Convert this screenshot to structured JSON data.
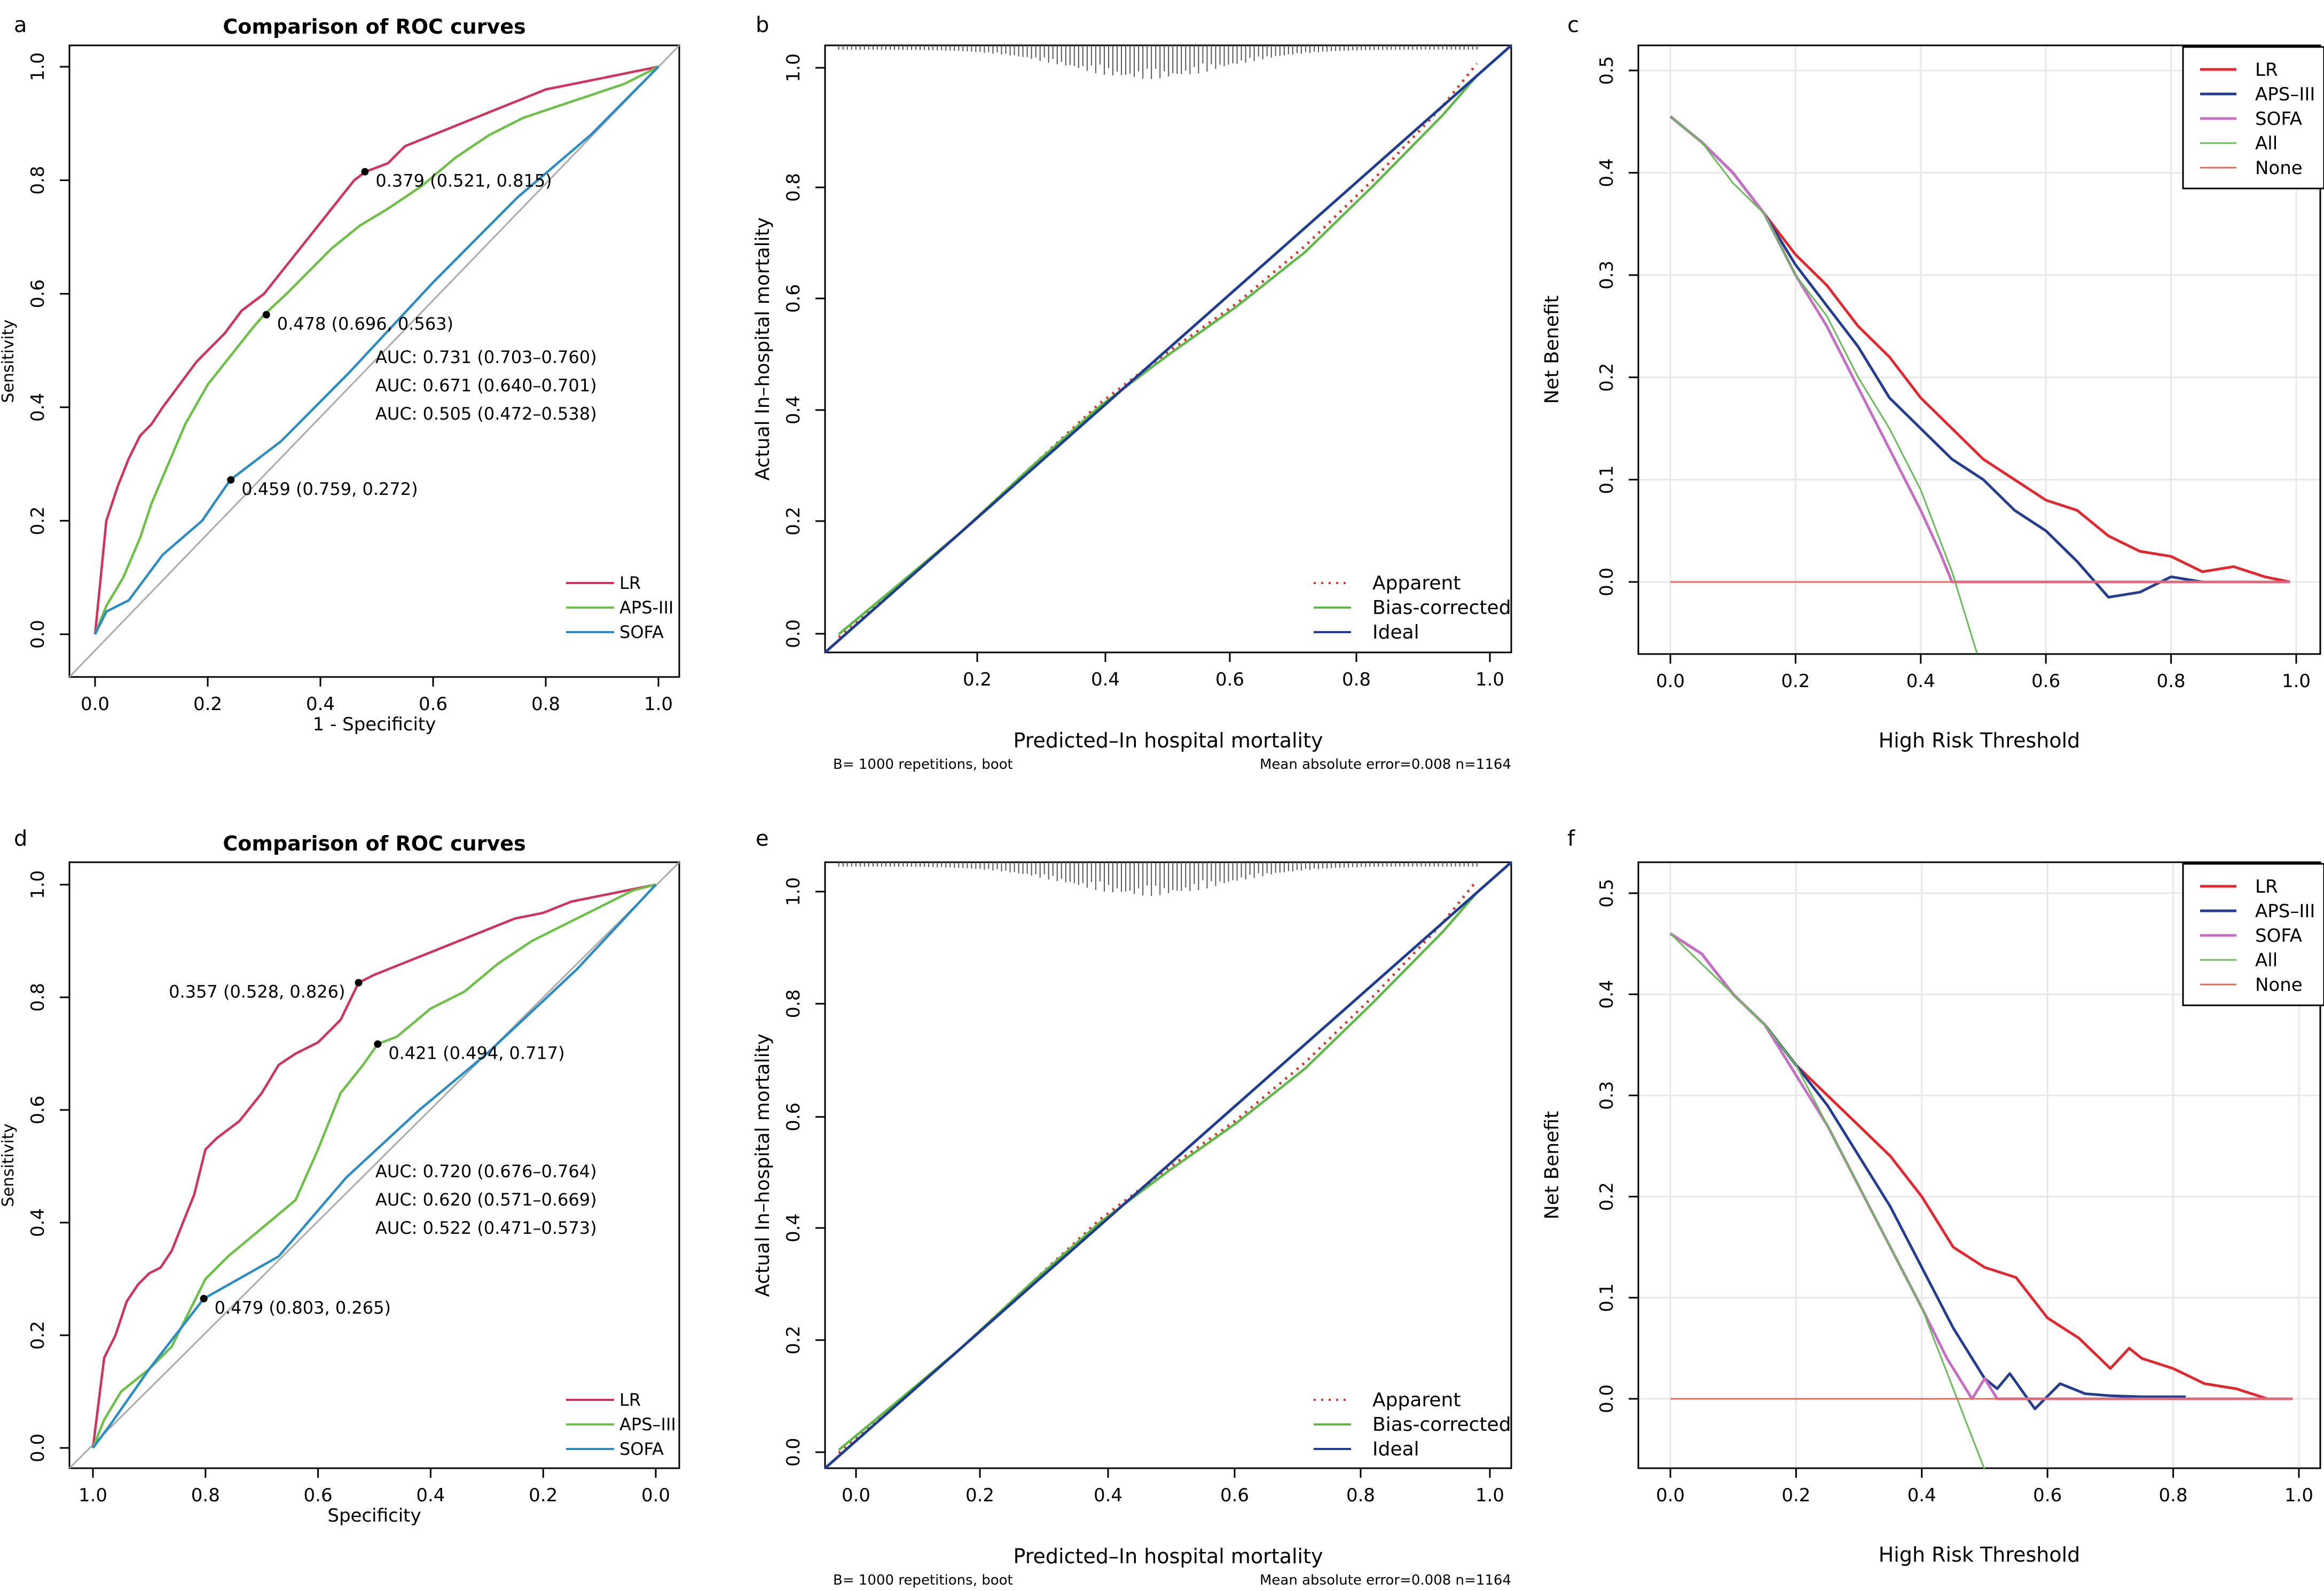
{
  "colors": {
    "lr_roc": "#d0325c",
    "aps_roc": "#6cbf47",
    "sofa_roc": "#2b8cc4",
    "ideal": "#1f3c94",
    "bias": "#5cb946",
    "apparent": "#d23b2e",
    "lr_dca": "#e0282f",
    "aps_dca": "#253d8f",
    "sofa_dca": "#c46fc4",
    "all_dca": "#68bb58",
    "none_dca": "#e26b5a"
  },
  "chart_data": [
    {
      "panel": "a",
      "type": "line",
      "title": "Comparison of ROC curves",
      "xlabel": "1 - Specificity",
      "ylabel": "Sensitivity",
      "xlim": [
        0,
        1
      ],
      "ylim": [
        0,
        1
      ],
      "x_ticks": [
        "0.0",
        "0.2",
        "0.4",
        "0.6",
        "0.8",
        "1.0"
      ],
      "y_ticks": [
        "0.0",
        "0.2",
        "0.4",
        "0.6",
        "0.8",
        "1.0"
      ],
      "series": [
        {
          "name": "LR",
          "color_key": "lr_roc",
          "x": [
            0,
            0.01,
            0.02,
            0.04,
            0.06,
            0.08,
            0.1,
            0.12,
            0.15,
            0.18,
            0.2,
            0.23,
            0.26,
            0.3,
            0.34,
            0.38,
            0.42,
            0.46,
            0.48,
            0.52,
            0.55,
            0.6,
            0.65,
            0.7,
            0.75,
            0.8,
            0.85,
            0.9,
            0.95,
            1
          ],
          "y": [
            0,
            0.1,
            0.2,
            0.26,
            0.31,
            0.35,
            0.37,
            0.4,
            0.44,
            0.48,
            0.5,
            0.53,
            0.57,
            0.6,
            0.65,
            0.7,
            0.75,
            0.8,
            0.815,
            0.83,
            0.86,
            0.88,
            0.9,
            0.92,
            0.94,
            0.96,
            0.97,
            0.98,
            0.99,
            1
          ]
        },
        {
          "name": "APS-III",
          "color_key": "aps_roc",
          "x": [
            0,
            0.02,
            0.05,
            0.08,
            0.1,
            0.13,
            0.16,
            0.2,
            0.24,
            0.28,
            0.3,
            0.34,
            0.38,
            0.42,
            0.47,
            0.52,
            0.58,
            0.64,
            0.7,
            0.76,
            0.82,
            0.88,
            0.94,
            1
          ],
          "y": [
            0,
            0.05,
            0.1,
            0.17,
            0.23,
            0.3,
            0.37,
            0.44,
            0.49,
            0.54,
            0.563,
            0.6,
            0.64,
            0.68,
            0.72,
            0.75,
            0.79,
            0.84,
            0.88,
            0.91,
            0.93,
            0.95,
            0.97,
            1
          ]
        },
        {
          "name": "SOFA",
          "color_key": "sofa_roc",
          "x": [
            0,
            0.02,
            0.06,
            0.12,
            0.19,
            0.24,
            0.33,
            0.45,
            0.6,
            0.75,
            0.88,
            1
          ],
          "y": [
            0,
            0.04,
            0.06,
            0.14,
            0.2,
            0.272,
            0.34,
            0.46,
            0.62,
            0.77,
            0.88,
            1
          ]
        }
      ],
      "points": [
        {
          "x": 0.479,
          "y": 0.815,
          "label": "0.379 (0.521, 0.815)"
        },
        {
          "x": 0.304,
          "y": 0.563,
          "label": "0.478 (0.696, 0.563)"
        },
        {
          "x": 0.241,
          "y": 0.272,
          "label": "0.459 (0.759, 0.272)"
        }
      ],
      "auc_labels": [
        {
          "text": "AUC: 0.731 (0.703–0.760)",
          "color_key": "lr_roc"
        },
        {
          "text": "AUC: 0.671 (0.640–0.701)",
          "color_key": "aps_roc"
        },
        {
          "text": "AUC: 0.505 (0.472–0.538)",
          "color_key": "sofa_roc"
        }
      ],
      "legend": [
        "LR",
        "APS-III",
        "SOFA"
      ],
      "legend_position": "bottom-right"
    },
    {
      "panel": "b",
      "type": "line",
      "title": "",
      "xlabel": "Predicted–In hospital mortality",
      "ylabel": "Actual In–hospital mortality",
      "xlim": [
        0,
        1
      ],
      "ylim": [
        0,
        1
      ],
      "x_ticks": [
        "0.2",
        "0.4",
        "0.6",
        "0.8",
        "1.0"
      ],
      "y_ticks": [
        "0.0",
        "0.2",
        "0.4",
        "0.6",
        "0.8",
        "1.0"
      ],
      "series": [
        {
          "name": "Apparent",
          "color_key": "apparent",
          "x": [
            0.02,
            0.1,
            0.2,
            0.3,
            0.4,
            0.5,
            0.6,
            0.7,
            0.8,
            0.9,
            0.95
          ],
          "y": [
            0.025,
            0.1,
            0.2,
            0.305,
            0.41,
            0.495,
            0.575,
            0.67,
            0.78,
            0.9,
            0.97
          ]
        },
        {
          "name": "Bias-corrected",
          "color_key": "bias",
          "x": [
            0.02,
            0.1,
            0.2,
            0.3,
            0.4,
            0.5,
            0.6,
            0.7,
            0.8,
            0.9,
            0.95
          ],
          "y": [
            0.03,
            0.105,
            0.2,
            0.305,
            0.405,
            0.49,
            0.57,
            0.66,
            0.77,
            0.885,
            0.95
          ]
        },
        {
          "name": "Ideal",
          "color_key": "ideal",
          "x": [
            0,
            1
          ],
          "y": [
            0,
            1
          ]
        }
      ],
      "rug_position": "top",
      "legend": [
        "Apparent",
        "Bias-corrected",
        "Ideal"
      ],
      "legend_position": "bottom-right",
      "footer_left": "B= 1000 repetitions, boot",
      "footer_right": "Mean absolute error=0.008 n=1164"
    },
    {
      "panel": "c",
      "type": "line",
      "title": "",
      "xlabel": "High Risk Threshold",
      "ylabel": "Net Benefit",
      "xlim": [
        0,
        1
      ],
      "ylim": [
        -0.07,
        0.5
      ],
      "x_ticks": [
        "0.0",
        "0.2",
        "0.4",
        "0.6",
        "0.8",
        "1.0"
      ],
      "y_ticks": [
        "0.0",
        "0.1",
        "0.2",
        "0.3",
        "0.4",
        "0.5"
      ],
      "series": [
        {
          "name": "LR",
          "color_key": "lr_dca",
          "x": [
            0,
            0.05,
            0.1,
            0.15,
            0.2,
            0.25,
            0.3,
            0.35,
            0.4,
            0.45,
            0.5,
            0.55,
            0.6,
            0.65,
            0.7,
            0.75,
            0.8,
            0.85,
            0.9,
            0.95,
            0.99
          ],
          "y": [
            0.455,
            0.43,
            0.4,
            0.36,
            0.32,
            0.29,
            0.25,
            0.22,
            0.18,
            0.15,
            0.12,
            0.1,
            0.08,
            0.07,
            0.045,
            0.03,
            0.025,
            0.01,
            0.015,
            0.005,
            0
          ]
        },
        {
          "name": "APS-III",
          "color_key": "aps_dca",
          "x": [
            0,
            0.05,
            0.1,
            0.15,
            0.2,
            0.25,
            0.3,
            0.35,
            0.4,
            0.45,
            0.5,
            0.55,
            0.6,
            0.65,
            0.7,
            0.75,
            0.8,
            0.85,
            0.9
          ],
          "y": [
            0.455,
            0.43,
            0.4,
            0.36,
            0.31,
            0.27,
            0.23,
            0.18,
            0.15,
            0.12,
            0.1,
            0.07,
            0.05,
            0.02,
            -0.015,
            -0.01,
            0.005,
            0,
            0
          ]
        },
        {
          "name": "SOFA",
          "color_key": "sofa_dca",
          "x": [
            0,
            0.05,
            0.1,
            0.15,
            0.2,
            0.25,
            0.3,
            0.35,
            0.4,
            0.43,
            0.45,
            0.47,
            0.5,
            0.99
          ],
          "y": [
            0.455,
            0.43,
            0.4,
            0.36,
            0.3,
            0.25,
            0.19,
            0.13,
            0.07,
            0.03,
            0,
            0,
            0,
            0
          ]
        },
        {
          "name": "All",
          "color_key": "all_dca",
          "x": [
            0,
            0.05,
            0.1,
            0.15,
            0.2,
            0.25,
            0.3,
            0.35,
            0.4,
            0.45,
            0.49
          ],
          "y": [
            0.455,
            0.43,
            0.39,
            0.36,
            0.3,
            0.26,
            0.2,
            0.15,
            0.09,
            0.01,
            -0.07
          ]
        },
        {
          "name": "None",
          "color_key": "none_dca",
          "x": [
            0,
            0.99
          ],
          "y": [
            0,
            0
          ]
        }
      ],
      "legend": [
        "LR",
        "APS–III",
        "SOFA",
        "All",
        "None"
      ],
      "legend_position": "top-right",
      "grid": true
    },
    {
      "panel": "d",
      "type": "line",
      "title": "Comparison of ROC curves",
      "xlabel": "Specificity",
      "ylabel": "Sensitivity",
      "xlim": [
        1,
        0
      ],
      "ylim": [
        0,
        1
      ],
      "x_ticks": [
        "1.0",
        "0.8",
        "0.6",
        "0.4",
        "0.2",
        "0.0"
      ],
      "y_ticks": [
        "0.0",
        "0.2",
        "0.4",
        "0.6",
        "0.8",
        "1.0"
      ],
      "series": [
        {
          "name": "LR",
          "color_key": "lr_roc",
          "x": [
            1,
            0.99,
            0.98,
            0.96,
            0.94,
            0.92,
            0.9,
            0.88,
            0.86,
            0.84,
            0.82,
            0.8,
            0.78,
            0.74,
            0.7,
            0.67,
            0.64,
            0.6,
            0.56,
            0.528,
            0.5,
            0.45,
            0.4,
            0.35,
            0.3,
            0.25,
            0.2,
            0.15,
            0.1,
            0.05,
            0
          ],
          "y": [
            0,
            0.08,
            0.16,
            0.2,
            0.26,
            0.29,
            0.31,
            0.32,
            0.35,
            0.4,
            0.45,
            0.53,
            0.55,
            0.58,
            0.63,
            0.68,
            0.7,
            0.72,
            0.76,
            0.826,
            0.84,
            0.86,
            0.88,
            0.9,
            0.92,
            0.94,
            0.95,
            0.97,
            0.98,
            0.99,
            1
          ]
        },
        {
          "name": "APS-III",
          "color_key": "aps_roc",
          "x": [
            1,
            0.98,
            0.95,
            0.9,
            0.86,
            0.83,
            0.8,
            0.76,
            0.7,
            0.64,
            0.6,
            0.56,
            0.52,
            0.494,
            0.46,
            0.4,
            0.34,
            0.28,
            0.22,
            0.16,
            0.1,
            0.04,
            0
          ],
          "y": [
            0,
            0.05,
            0.1,
            0.14,
            0.18,
            0.24,
            0.3,
            0.34,
            0.39,
            0.44,
            0.53,
            0.63,
            0.68,
            0.717,
            0.73,
            0.78,
            0.81,
            0.86,
            0.9,
            0.93,
            0.96,
            0.99,
            1
          ]
        },
        {
          "name": "SOFA",
          "color_key": "sofa_roc",
          "x": [
            1,
            0.97,
            0.9,
            0.803,
            0.67,
            0.55,
            0.42,
            0.3,
            0.14,
            0
          ],
          "y": [
            0,
            0.04,
            0.14,
            0.265,
            0.34,
            0.48,
            0.6,
            0.7,
            0.85,
            1
          ]
        }
      ],
      "points": [
        {
          "x": 0.528,
          "y": 0.826,
          "label": "0.357 (0.528, 0.826)",
          "label_side": "left"
        },
        {
          "x": 0.494,
          "y": 0.717,
          "label": "0.421 (0.494, 0.717)"
        },
        {
          "x": 0.803,
          "y": 0.265,
          "label": "0.479 (0.803, 0.265)"
        }
      ],
      "auc_labels": [
        {
          "text": "AUC: 0.720 (0.676–0.764)",
          "color_key": "lr_roc"
        },
        {
          "text": "AUC: 0.620 (0.571–0.669)",
          "color_key": "aps_roc"
        },
        {
          "text": "AUC: 0.522 (0.471–0.573)",
          "color_key": "sofa_roc"
        }
      ],
      "legend": [
        "LR",
        "APS–III",
        "SOFA"
      ],
      "legend_position": "bottom-right"
    },
    {
      "panel": "e",
      "type": "line",
      "title": "",
      "xlabel": "Predicted–In hospital mortality",
      "ylabel": "Actual In–hospital mortality",
      "xlim": [
        0,
        1
      ],
      "ylim": [
        0,
        1
      ],
      "x_ticks": [
        "0.0",
        "0.2",
        "0.4",
        "0.6",
        "0.8",
        "1.0"
      ],
      "y_ticks": [
        "0.0",
        "0.2",
        "0.4",
        "0.6",
        "0.8",
        "1.0"
      ],
      "series": [
        {
          "name": "Apparent",
          "color_key": "apparent",
          "x": [
            0.02,
            0.1,
            0.2,
            0.3,
            0.4,
            0.5,
            0.6,
            0.7,
            0.8,
            0.9,
            0.95
          ],
          "y": [
            0.025,
            0.1,
            0.2,
            0.305,
            0.41,
            0.495,
            0.575,
            0.67,
            0.78,
            0.9,
            0.97
          ]
        },
        {
          "name": "Bias-corrected",
          "color_key": "bias",
          "x": [
            0.02,
            0.1,
            0.2,
            0.3,
            0.4,
            0.5,
            0.6,
            0.7,
            0.8,
            0.9,
            0.95
          ],
          "y": [
            0.03,
            0.105,
            0.2,
            0.305,
            0.405,
            0.49,
            0.57,
            0.66,
            0.77,
            0.885,
            0.95
          ]
        },
        {
          "name": "Ideal",
          "color_key": "ideal",
          "x": [
            0,
            1
          ],
          "y": [
            0,
            1
          ]
        }
      ],
      "rug_position": "top",
      "legend": [
        "Apparent",
        "Bias-corrected",
        "Ideal"
      ],
      "legend_position": "bottom-right",
      "footer_left": "B= 1000 repetitions, boot",
      "footer_right": "Mean absolute error=0.008 n=1164"
    },
    {
      "panel": "f",
      "type": "line",
      "title": "",
      "xlabel": "High Risk Threshold",
      "ylabel": "Net Benefit",
      "xlim": [
        0,
        1
      ],
      "ylim": [
        -0.07,
        0.5
      ],
      "x_ticks": [
        "0.0",
        "0.2",
        "0.4",
        "0.6",
        "0.8",
        "1.0"
      ],
      "y_ticks": [
        "0.0",
        "0.1",
        "0.2",
        "0.3",
        "0.4",
        "0.5"
      ],
      "series": [
        {
          "name": "LR",
          "color_key": "lr_dca",
          "x": [
            0,
            0.05,
            0.1,
            0.15,
            0.2,
            0.25,
            0.3,
            0.35,
            0.4,
            0.45,
            0.5,
            0.55,
            0.6,
            0.65,
            0.7,
            0.73,
            0.75,
            0.8,
            0.85,
            0.9,
            0.95,
            0.99
          ],
          "y": [
            0.46,
            0.44,
            0.4,
            0.37,
            0.33,
            0.3,
            0.27,
            0.24,
            0.2,
            0.15,
            0.13,
            0.12,
            0.08,
            0.06,
            0.03,
            0.05,
            0.04,
            0.03,
            0.015,
            0.01,
            0,
            0
          ]
        },
        {
          "name": "APS-III",
          "color_key": "aps_dca",
          "x": [
            0,
            0.05,
            0.1,
            0.15,
            0.2,
            0.25,
            0.3,
            0.35,
            0.4,
            0.45,
            0.5,
            0.52,
            0.54,
            0.58,
            0.62,
            0.66,
            0.7,
            0.75,
            0.82
          ],
          "y": [
            0.46,
            0.44,
            0.4,
            0.37,
            0.33,
            0.29,
            0.24,
            0.19,
            0.13,
            0.07,
            0.02,
            0.01,
            0.025,
            -0.01,
            0.015,
            0.005,
            0.003,
            0.002,
            0.002
          ]
        },
        {
          "name": "SOFA",
          "color_key": "sofa_dca",
          "x": [
            0,
            0.05,
            0.1,
            0.15,
            0.2,
            0.25,
            0.3,
            0.35,
            0.4,
            0.44,
            0.46,
            0.48,
            0.5,
            0.52,
            0.99
          ],
          "y": [
            0.46,
            0.44,
            0.4,
            0.37,
            0.32,
            0.27,
            0.21,
            0.15,
            0.09,
            0.04,
            0.02,
            0,
            0.02,
            0,
            0
          ]
        },
        {
          "name": "All",
          "color_key": "all_dca",
          "x": [
            0,
            0.05,
            0.1,
            0.15,
            0.2,
            0.25,
            0.3,
            0.35,
            0.4,
            0.45,
            0.5
          ],
          "y": [
            0.46,
            0.43,
            0.4,
            0.37,
            0.33,
            0.27,
            0.21,
            0.15,
            0.09,
            0.01,
            -0.07
          ]
        },
        {
          "name": "None",
          "color_key": "none_dca",
          "x": [
            0,
            0.99
          ],
          "y": [
            0,
            0
          ]
        }
      ],
      "legend": [
        "LR",
        "APS–III",
        "SOFA",
        "All",
        "None"
      ],
      "legend_position": "top-right",
      "grid": true
    }
  ]
}
